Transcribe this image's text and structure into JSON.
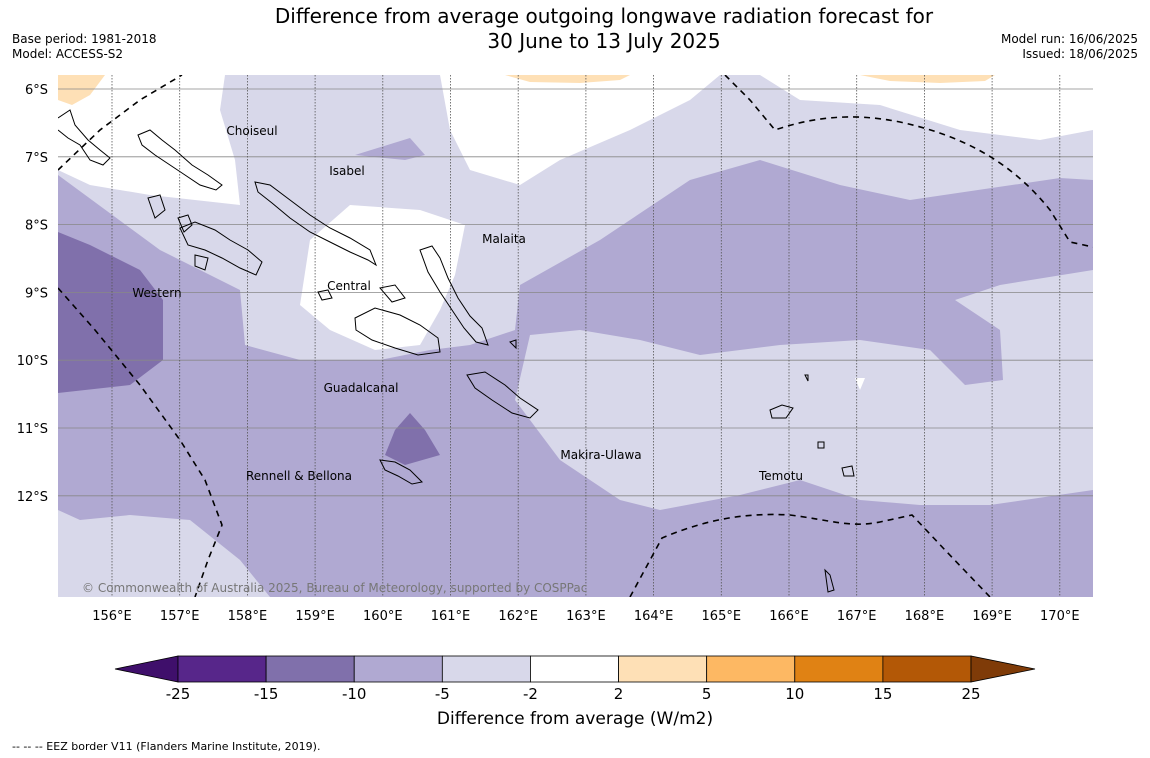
{
  "header": {
    "title_line1": "Difference from average outgoing longwave radiation forecast for",
    "title_line2": "30 June to 13 July 2025",
    "base_period": "Base period: 1981-2018",
    "model": "Model: ACCESS-S2",
    "model_run": "Model run: 16/06/2025",
    "issued": "Issued: 18/06/2025"
  },
  "map": {
    "lat_labels": [
      "6°S",
      "7°S",
      "8°S",
      "9°S",
      "10°S",
      "11°S",
      "12°S"
    ],
    "lon_labels": [
      "156°E",
      "157°E",
      "158°E",
      "159°E",
      "160°E",
      "161°E",
      "162°E",
      "163°E",
      "164°E",
      "165°E",
      "166°E",
      "167°E",
      "168°E",
      "169°E",
      "170°E"
    ],
    "regions": [
      "Choiseul",
      "Isabel",
      "Malaita",
      "Western",
      "Central",
      "Guadalcanal",
      "Makira-Ulawa",
      "Rennell & Bellona",
      "Temotu"
    ],
    "copyright": "© Commonwealth of Australia 2025, Bureau of Meteorology, supported by COSPPac"
  },
  "colorbar": {
    "title": "Difference from average (W/m2)",
    "ticks": [
      "-25",
      "-15",
      "-10",
      "-5",
      "-2",
      "2",
      "5",
      "10",
      "15",
      "25"
    ],
    "colors": [
      "#3f0f6b",
      "#57268a",
      "#8070ab",
      "#b0a9d2",
      "#d8d8ea",
      "#ffffff",
      "#fee0b6",
      "#fdb863",
      "#e08214",
      "#b35806",
      "#7f3b08"
    ]
  },
  "footnote": "--  --  -- EEZ border V11 (Flanders Marine Institute, 2019)."
}
